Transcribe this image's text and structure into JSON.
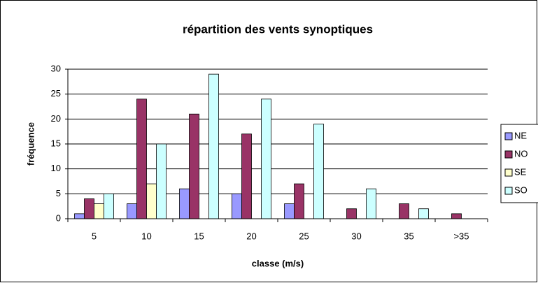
{
  "chart_data": {
    "type": "bar",
    "title": "répartition des vents synoptiques",
    "x_label": "classe (m/s)",
    "y_label": "fréquence",
    "categories": [
      "5",
      "10",
      "15",
      "20",
      "25",
      "30",
      "35",
      ">35"
    ],
    "series": [
      {
        "name": "NE",
        "color": "#9999ff",
        "values": [
          1,
          3,
          6,
          5,
          3,
          0,
          0,
          0
        ]
      },
      {
        "name": "NO",
        "color": "#993366",
        "values": [
          4,
          24,
          21,
          17,
          7,
          2,
          3,
          1
        ]
      },
      {
        "name": "SE",
        "color": "#ffffcc",
        "values": [
          3,
          7,
          0,
          0,
          0,
          0,
          0,
          0
        ]
      },
      {
        "name": "SO",
        "color": "#ccffff",
        "values": [
          5,
          15,
          29,
          24,
          19,
          6,
          2,
          0
        ]
      }
    ],
    "ylim": [
      0,
      30
    ],
    "yticks": [
      0,
      5,
      10,
      15,
      20,
      25,
      30
    ],
    "grid": true,
    "legend": "right"
  }
}
